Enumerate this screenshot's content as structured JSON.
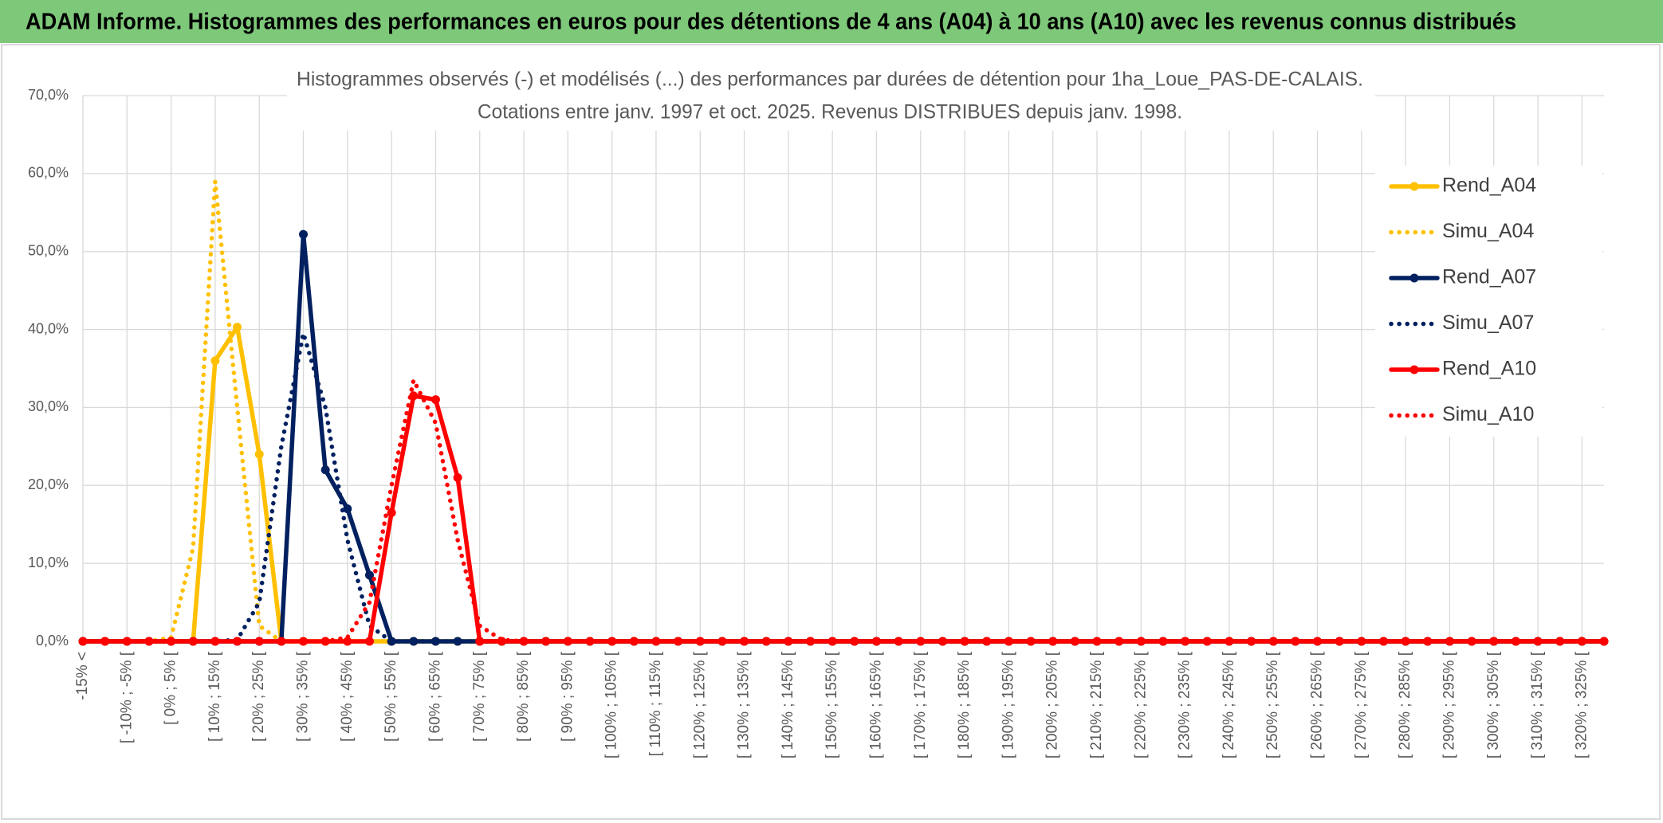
{
  "header": "ADAM Informe. Histogrammes des performances en euros pour des détentions de 4 ans (A04) à 10 ans (A10) avec les revenus connus distribués",
  "chart_data": {
    "type": "line",
    "title": "Histogrammes observés (-) et modélisés (...) des performances par durées de détention pour 1ha_Loue_PAS-DE-CALAIS.",
    "subtitle": "Cotations entre janv. 1997 et oct. 2025. Revenus DISTRIBUES depuis janv. 1998.",
    "categories": [
      "-15% <",
      null,
      "[ -10% ; -5% [",
      null,
      "[ 0% ; 5% [",
      null,
      "[ 10% ; 15% [",
      null,
      "[ 20% ; 25% [",
      null,
      "[ 30% ; 35% [",
      null,
      "[ 40% ; 45% [",
      null,
      "[ 50% ; 55% [",
      null,
      "[ 60% ; 65% [",
      null,
      "[ 70% ; 75% [",
      null,
      "[ 80% ; 85% [",
      null,
      "[ 90% ; 95% [",
      null,
      "[ 100% ; 105% [",
      null,
      "[ 110% ; 115% [",
      null,
      "[ 120% ; 125% [",
      null,
      "[ 130% ; 135% [",
      null,
      "[ 140% ; 145% [",
      null,
      "[ 150% ; 155% [",
      null,
      "[ 160% ; 165% [",
      null,
      "[ 170% ; 175% [",
      null,
      "[ 180% ; 185% [",
      null,
      "[ 190% ; 195% [",
      null,
      "[ 200% ; 205% [",
      null,
      "[ 210% ; 215% [",
      null,
      "[ 220% ; 225% [",
      null,
      "[ 230% ; 235% [",
      null,
      "[ 240% ; 245% [",
      null,
      "[ 250% ; 255% [",
      null,
      "[ 260% ; 265% [",
      null,
      "[ 270% ; 275% [",
      null,
      "[ 280% ; 285% [",
      null,
      "[ 290% ; 295% [",
      null,
      "[ 300% ; 305% [",
      null,
      "[ 310% ; 315% [",
      null,
      "[ 320% ; 325% [",
      null
    ],
    "ylim": [
      0,
      70
    ],
    "yticks": [
      {
        "value": 0,
        "label": "0,0%"
      },
      {
        "value": 10,
        "label": "10,0%"
      },
      {
        "value": 20,
        "label": "20,0%"
      },
      {
        "value": 30,
        "label": "30,0%"
      },
      {
        "value": 40,
        "label": "40,0%"
      },
      {
        "value": 50,
        "label": "50,0%"
      },
      {
        "value": 60,
        "label": "60,0%"
      },
      {
        "value": 70,
        "label": "70,0%"
      }
    ],
    "grid": true,
    "legend": "right",
    "series": [
      {
        "name": "Rend_A04",
        "color": "#ffc000",
        "style": "solid",
        "markers": true,
        "values": [
          0,
          0,
          0,
          0,
          0,
          0,
          36,
          40.3,
          24,
          0,
          0,
          0,
          0,
          0,
          0,
          0,
          0,
          0,
          0,
          0,
          0,
          0,
          0,
          0,
          0,
          0,
          0,
          0,
          0,
          0,
          0,
          0,
          0,
          0,
          0,
          0,
          0,
          0,
          0,
          0,
          0,
          0,
          0,
          0,
          0,
          0,
          0,
          0,
          0,
          0,
          0,
          0,
          0,
          0,
          0,
          0,
          0,
          0,
          0,
          0,
          0,
          0,
          0,
          0,
          0,
          0,
          0,
          0,
          0,
          0
        ]
      },
      {
        "name": "Simu_A04",
        "color": "#ffc000",
        "style": "dotted",
        "markers": false,
        "values": [
          0,
          0,
          0,
          0,
          0.5,
          12,
          59,
          30,
          2,
          0,
          0,
          0,
          0,
          0,
          0,
          0,
          0,
          0,
          0,
          0,
          0,
          0,
          0,
          0,
          0,
          0,
          0,
          0,
          0,
          0,
          0,
          0,
          0,
          0,
          0,
          0,
          0,
          0,
          0,
          0,
          0,
          0,
          0,
          0,
          0,
          0,
          0,
          0,
          0,
          0,
          0,
          0,
          0,
          0,
          0,
          0,
          0,
          0,
          0,
          0,
          0,
          0,
          0,
          0,
          0,
          0,
          0,
          0,
          0,
          0
        ]
      },
      {
        "name": "Rend_A07",
        "color": "#002060",
        "style": "solid",
        "markers": true,
        "values": [
          0,
          0,
          0,
          0,
          0,
          0,
          0,
          0,
          0,
          0,
          52.2,
          22,
          17,
          8.5,
          0,
          0,
          0,
          0,
          0,
          0,
          0,
          0,
          0,
          0,
          0,
          0,
          0,
          0,
          0,
          0,
          0,
          0,
          0,
          0,
          0,
          0,
          0,
          0,
          0,
          0,
          0,
          0,
          0,
          0,
          0,
          0,
          0,
          0,
          0,
          0,
          0,
          0,
          0,
          0,
          0,
          0,
          0,
          0,
          0,
          0,
          0,
          0,
          0,
          0,
          0,
          0,
          0,
          0,
          0,
          0
        ]
      },
      {
        "name": "Simu_A07",
        "color": "#002060",
        "style": "dotted",
        "markers": false,
        "values": [
          0,
          0,
          0,
          0,
          0,
          0,
          0,
          0.2,
          5,
          25,
          39.5,
          30,
          13,
          2,
          0,
          0,
          0,
          0,
          0,
          0,
          0,
          0,
          0,
          0,
          0,
          0,
          0,
          0,
          0,
          0,
          0,
          0,
          0,
          0,
          0,
          0,
          0,
          0,
          0,
          0,
          0,
          0,
          0,
          0,
          0,
          0,
          0,
          0,
          0,
          0,
          0,
          0,
          0,
          0,
          0,
          0,
          0,
          0,
          0,
          0,
          0,
          0,
          0,
          0,
          0,
          0,
          0,
          0,
          0,
          0
        ]
      },
      {
        "name": "Rend_A10",
        "color": "#ff0000",
        "style": "solid",
        "markers": true,
        "values": [
          0,
          0,
          0,
          0,
          0,
          0,
          0,
          0,
          0,
          0,
          0,
          0,
          0,
          0,
          16.5,
          31.5,
          31,
          21,
          0,
          0,
          0,
          0,
          0,
          0,
          0,
          0,
          0,
          0,
          0,
          0,
          0,
          0,
          0,
          0,
          0,
          0,
          0,
          0,
          0,
          0,
          0,
          0,
          0,
          0,
          0,
          0,
          0,
          0,
          0,
          0,
          0,
          0,
          0,
          0,
          0,
          0,
          0,
          0,
          0,
          0,
          0,
          0,
          0,
          0,
          0,
          0,
          0,
          0,
          0,
          0
        ]
      },
      {
        "name": "Simu_A10",
        "color": "#ff0000",
        "style": "dotted",
        "markers": false,
        "values": [
          0,
          0,
          0,
          0,
          0,
          0,
          0,
          0,
          0,
          0,
          0,
          0,
          0.5,
          5,
          20,
          33.5,
          28,
          13,
          2,
          0.2,
          0,
          0,
          0,
          0,
          0,
          0,
          0,
          0,
          0,
          0,
          0,
          0,
          0,
          0,
          0,
          0,
          0,
          0,
          0,
          0,
          0,
          0,
          0,
          0,
          0,
          0,
          0,
          0,
          0,
          0,
          0,
          0,
          0,
          0,
          0,
          0,
          0,
          0,
          0,
          0,
          0,
          0,
          0,
          0,
          0,
          0,
          0,
          0,
          0,
          0
        ]
      }
    ]
  }
}
